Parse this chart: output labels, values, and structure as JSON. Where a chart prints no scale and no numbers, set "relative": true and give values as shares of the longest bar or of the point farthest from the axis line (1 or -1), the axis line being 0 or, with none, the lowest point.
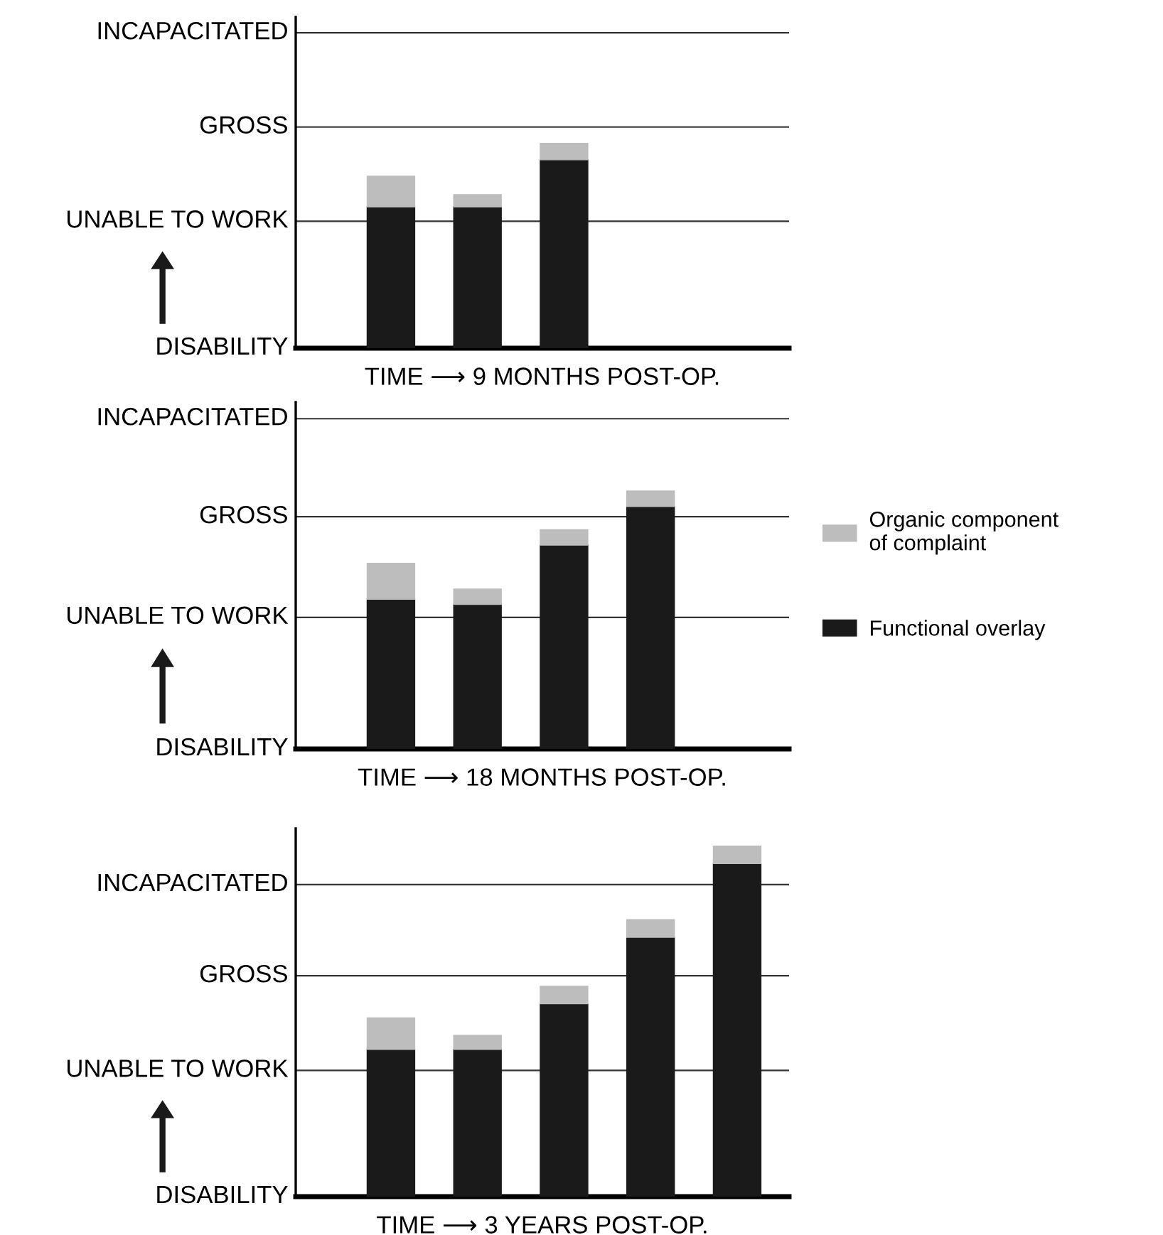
{
  "chart_data": [
    {
      "type": "bar",
      "stacked": true,
      "relative": true,
      "categories": [
        null,
        null,
        null,
        null,
        null
      ],
      "xlabel": "TIME ⟶ 9 MONTHS POST-OP.",
      "ref_lines": [
        {
          "axis": "y",
          "value": 0,
          "label": "DISABILITY"
        },
        {
          "axis": "y",
          "value": 0.62,
          "label": "UNABLE TO WORK"
        },
        {
          "axis": "y",
          "value": 1.08,
          "label": "GROSS"
        },
        {
          "axis": "y",
          "value": 1.54,
          "label": "INCAPACITATED"
        }
      ],
      "series": [
        {
          "color": "#1a1a1a",
          "values": [
            0.69,
            0.69,
            0.92,
            null,
            null
          ]
        },
        {
          "color": "#bdbdbd",
          "values": [
            0.15,
            0.06,
            0.08,
            null,
            null
          ]
        }
      ]
    },
    {
      "type": "bar",
      "stacked": true,
      "relative": true,
      "categories": [
        null,
        null,
        null,
        null,
        null
      ],
      "xlabel": "TIME ⟶ 18 MONTHS POST-OP.",
      "legend": "right",
      "ref_lines": [
        {
          "axis": "y",
          "value": 0,
          "label": "DISABILITY"
        },
        {
          "axis": "y",
          "value": 0.51,
          "label": "UNABLE TO WORK"
        },
        {
          "axis": "y",
          "value": 0.9,
          "label": "GROSS"
        },
        {
          "axis": "y",
          "value": 1.28,
          "label": "INCAPACITATED"
        }
      ],
      "series": [
        {
          "name": "Functional overlay",
          "color": "#1a1a1a",
          "values": [
            0.58,
            0.56,
            0.79,
            0.94,
            null
          ]
        },
        {
          "name": "Organic component of complaint",
          "color": "#bdbdbd",
          "values": [
            0.14,
            0.06,
            0.06,
            0.06,
            null
          ]
        }
      ]
    },
    {
      "type": "bar",
      "stacked": true,
      "relative": true,
      "categories": [
        null,
        null,
        null,
        null,
        null
      ],
      "xlabel": "TIME ⟶ 3 YEARS POST-OP.",
      "ref_lines": [
        {
          "axis": "y",
          "value": 0,
          "label": "DISABILITY"
        },
        {
          "axis": "y",
          "value": 0.36,
          "label": "UNABLE TO WORK"
        },
        {
          "axis": "y",
          "value": 0.63,
          "label": "GROSS"
        },
        {
          "axis": "y",
          "value": 0.89,
          "label": "INCAPACITATED"
        }
      ],
      "series": [
        {
          "color": "#1a1a1a",
          "values": [
            0.42,
            0.42,
            0.55,
            0.74,
            0.95
          ]
        },
        {
          "color": "#bdbdbd",
          "values": [
            0.09,
            0.04,
            0.05,
            0.05,
            0.05
          ]
        }
      ]
    }
  ]
}
